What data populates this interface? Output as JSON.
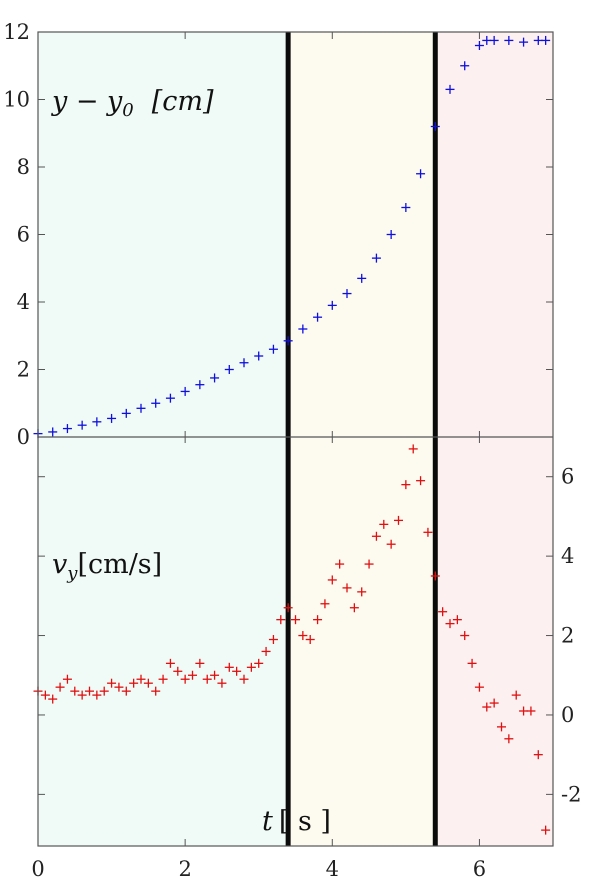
{
  "chart_data": [
    {
      "type": "scatter",
      "panel": "top",
      "label": "y − y0   [cm]",
      "label_parts": {
        "main": "y − y",
        "sub": "0",
        "unit": "[cm]"
      },
      "xlim": [
        0,
        7
      ],
      "ylim": [
        0,
        12
      ],
      "yticks": [
        "0",
        "2",
        "4",
        "6",
        "8",
        "10",
        "12"
      ],
      "xticks": [
        "0",
        "2",
        "4",
        "6"
      ],
      "marker": "+",
      "color": "#1010dd",
      "grid": false,
      "x": [
        0.0,
        0.2,
        0.4,
        0.6,
        0.8,
        1.0,
        1.2,
        1.4,
        1.6,
        1.8,
        2.0,
        2.2,
        2.4,
        2.6,
        2.8,
        3.0,
        3.2,
        3.4,
        3.6,
        3.8,
        4.0,
        4.2,
        4.4,
        4.6,
        4.8,
        5.0,
        5.2,
        5.4,
        5.6,
        5.8,
        6.0,
        6.1,
        6.2,
        6.4,
        6.6,
        6.8,
        6.9
      ],
      "y": [
        0.1,
        0.15,
        0.25,
        0.35,
        0.45,
        0.55,
        0.7,
        0.85,
        1.0,
        1.15,
        1.35,
        1.55,
        1.75,
        2.0,
        2.2,
        2.4,
        2.6,
        2.85,
        3.2,
        3.55,
        3.9,
        4.25,
        4.7,
        5.3,
        6.0,
        6.8,
        7.8,
        9.2,
        10.3,
        11.0,
        11.6,
        11.75,
        11.75,
        11.75,
        11.7,
        11.75,
        11.75
      ]
    },
    {
      "type": "scatter",
      "panel": "bottom",
      "label": "vy[cm/s]",
      "label_parts": {
        "main": "v",
        "sub": "y",
        "unit": "[cm/s]"
      },
      "xlim": [
        0,
        7
      ],
      "ylim": [
        -3.3,
        7
      ],
      "yticks": [
        "6",
        "4",
        "2",
        "0",
        "-2"
      ],
      "xticks": [
        "0",
        "2",
        "4",
        "6"
      ],
      "marker": "+",
      "color": "#e01010",
      "grid": false,
      "x": [
        0.0,
        0.1,
        0.2,
        0.3,
        0.4,
        0.5,
        0.6,
        0.7,
        0.8,
        0.9,
        1.0,
        1.1,
        1.2,
        1.3,
        1.4,
        1.5,
        1.6,
        1.7,
        1.8,
        1.9,
        2.0,
        2.1,
        2.2,
        2.3,
        2.4,
        2.5,
        2.6,
        2.7,
        2.8,
        2.9,
        3.0,
        3.1,
        3.2,
        3.3,
        3.4,
        3.5,
        3.6,
        3.7,
        3.8,
        3.9,
        4.0,
        4.1,
        4.2,
        4.3,
        4.4,
        4.5,
        4.6,
        4.7,
        4.8,
        4.9,
        5.0,
        5.1,
        5.2,
        5.3,
        5.4,
        5.5,
        5.6,
        5.7,
        5.8,
        5.9,
        6.0,
        6.1,
        6.2,
        6.3,
        6.4,
        6.5,
        6.6,
        6.7,
        6.8,
        6.9
      ],
      "y": [
        0.6,
        0.5,
        0.4,
        0.7,
        0.9,
        0.6,
        0.5,
        0.6,
        0.5,
        0.6,
        0.8,
        0.7,
        0.6,
        0.8,
        0.9,
        0.8,
        0.6,
        0.9,
        1.3,
        1.1,
        0.9,
        1.0,
        1.3,
        0.9,
        1.0,
        0.8,
        1.2,
        1.1,
        0.9,
        1.2,
        1.3,
        1.6,
        1.9,
        2.4,
        2.7,
        2.4,
        2.0,
        1.9,
        2.4,
        2.8,
        3.4,
        3.8,
        3.2,
        2.7,
        3.1,
        3.8,
        4.5,
        4.8,
        4.3,
        4.9,
        5.8,
        6.7,
        5.9,
        4.6,
        3.5,
        2.6,
        2.3,
        2.4,
        2.0,
        1.3,
        0.7,
        0.2,
        0.3,
        -0.3,
        -0.6,
        0.5,
        0.1,
        0.1,
        -1.0,
        -2.9
      ]
    }
  ],
  "xlabel": {
    "var": "t",
    "unit": "[ s ]"
  },
  "markers": {
    "t1": 3.4,
    "t2": 5.4
  },
  "colors": {
    "region1": "#f0fbf8",
    "region2": "#fdfbf0",
    "region3": "#fcf0f1",
    "vline": "#0b0b0b"
  }
}
